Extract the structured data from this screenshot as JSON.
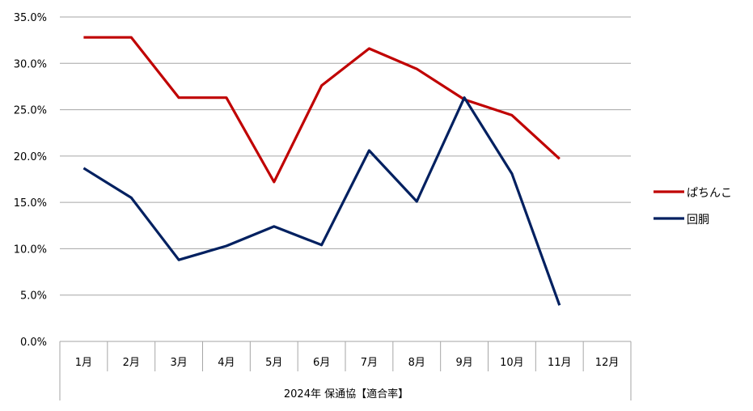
{
  "chart_data": {
    "type": "line",
    "categories": [
      "1月",
      "2月",
      "3月",
      "4月",
      "5月",
      "6月",
      "7月",
      "8月",
      "9月",
      "10月",
      "11月",
      "12月"
    ],
    "series": [
      {
        "name": "ぱちんこ",
        "color": "#c00000",
        "values": [
          0.328,
          0.328,
          0.263,
          0.263,
          0.172,
          0.276,
          0.316,
          0.294,
          0.261,
          0.244,
          0.197,
          null
        ]
      },
      {
        "name": "回胴",
        "color": "#002060",
        "values": [
          0.187,
          0.155,
          0.088,
          0.103,
          0.124,
          0.104,
          0.206,
          0.151,
          0.263,
          0.181,
          0.039,
          null
        ]
      }
    ],
    "y_ticks": [
      "0.0%",
      "5.0%",
      "10.0%",
      "15.0%",
      "20.0%",
      "25.0%",
      "30.0%",
      "35.0%"
    ],
    "ylim": [
      0,
      0.35
    ],
    "xlabel": "2024年 保通協【適合率】",
    "grid": true,
    "legend": "right"
  }
}
